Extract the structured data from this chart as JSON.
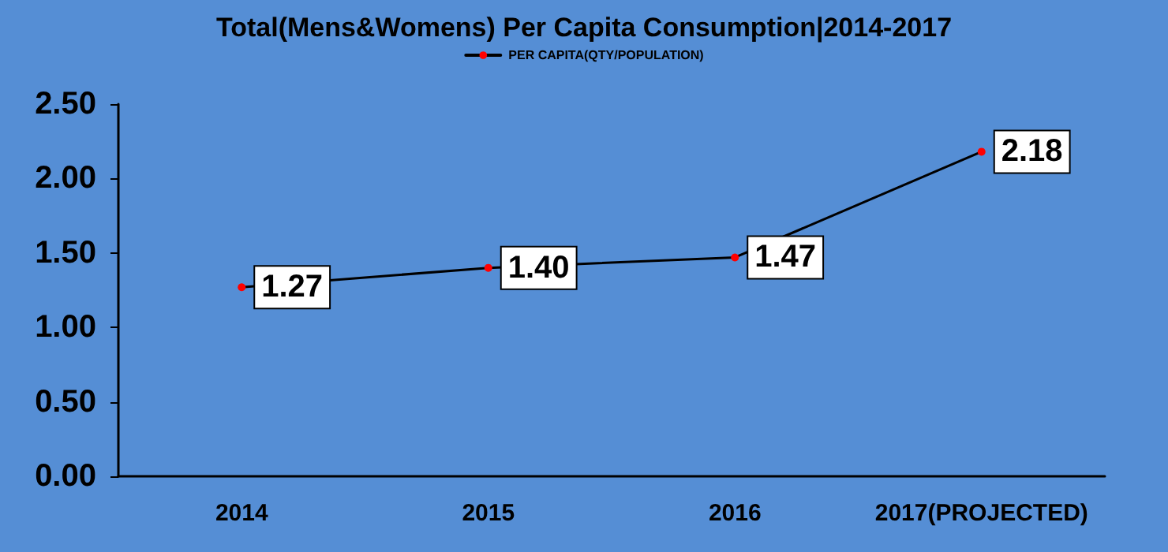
{
  "chart_data": {
    "type": "line",
    "title": "Total(Mens&Womens) Per Capita Consumption|2014-2017",
    "categories": [
      "2014",
      "2015",
      "2016",
      "2017(PROJECTED)"
    ],
    "series": [
      {
        "name": "PER CAPITA(QTY/POPULATION)",
        "color": "#000000",
        "colors": [
          "#ff0000",
          "#ff0000",
          "#ff0000",
          "#ff0000"
        ],
        "values": [
          1.27,
          1.4,
          1.47,
          2.18
        ],
        "value_labels": [
          "1.27",
          "1.40",
          "1.47",
          "2.18"
        ]
      }
    ],
    "ylim": [
      0,
      2.5
    ],
    "yticks": [
      {
        "value": 0,
        "label": "0.00"
      },
      {
        "value": 0.5,
        "label": "0.50"
      },
      {
        "value": 1,
        "label": "1.00"
      },
      {
        "value": 1.5,
        "label": "1.50"
      },
      {
        "value": 2,
        "label": "2.00"
      },
      {
        "value": 2.5,
        "label": "2.50"
      }
    ],
    "grid": false,
    "legend": "top",
    "marker": "circle",
    "line_style": "solid"
  }
}
